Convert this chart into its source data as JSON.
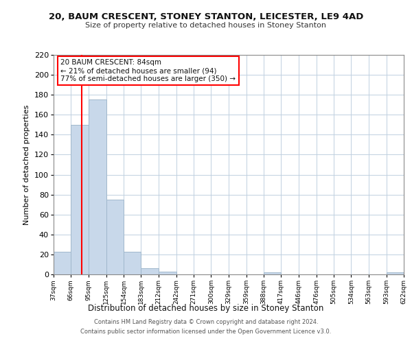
{
  "title": "20, BAUM CRESCENT, STONEY STANTON, LEICESTER, LE9 4AD",
  "subtitle": "Size of property relative to detached houses in Stoney Stanton",
  "xlabel": "Distribution of detached houses by size in Stoney Stanton",
  "ylabel": "Number of detached properties",
  "bins": [
    37,
    66,
    95,
    125,
    154,
    183,
    212,
    242,
    271,
    300,
    329,
    359,
    388,
    417,
    446,
    476,
    505,
    534,
    563,
    593,
    622
  ],
  "bin_labels": [
    "37sqm",
    "66sqm",
    "95sqm",
    "125sqm",
    "154sqm",
    "183sqm",
    "212sqm",
    "242sqm",
    "271sqm",
    "300sqm",
    "329sqm",
    "359sqm",
    "388sqm",
    "417sqm",
    "446sqm",
    "476sqm",
    "505sqm",
    "534sqm",
    "563sqm",
    "593sqm",
    "622sqm"
  ],
  "counts": [
    23,
    150,
    175,
    75,
    23,
    6,
    3,
    0,
    0,
    0,
    0,
    0,
    2,
    0,
    0,
    0,
    0,
    0,
    0,
    2
  ],
  "bar_color": "#c8d8ea",
  "bar_edge_color": "#a0b8cc",
  "property_line_x": 84,
  "property_line_color": "red",
  "ylim": [
    0,
    220
  ],
  "yticks": [
    0,
    20,
    40,
    60,
    80,
    100,
    120,
    140,
    160,
    180,
    200,
    220
  ],
  "annotation_title": "20 BAUM CRESCENT: 84sqm",
  "annotation_line1": "← 21% of detached houses are smaller (94)",
  "annotation_line2": "77% of semi-detached houses are larger (350) →",
  "footer_line1": "Contains HM Land Registry data © Crown copyright and database right 2024.",
  "footer_line2": "Contains public sector information licensed under the Open Government Licence v3.0.",
  "background_color": "#ffffff",
  "grid_color": "#c0d0e0"
}
